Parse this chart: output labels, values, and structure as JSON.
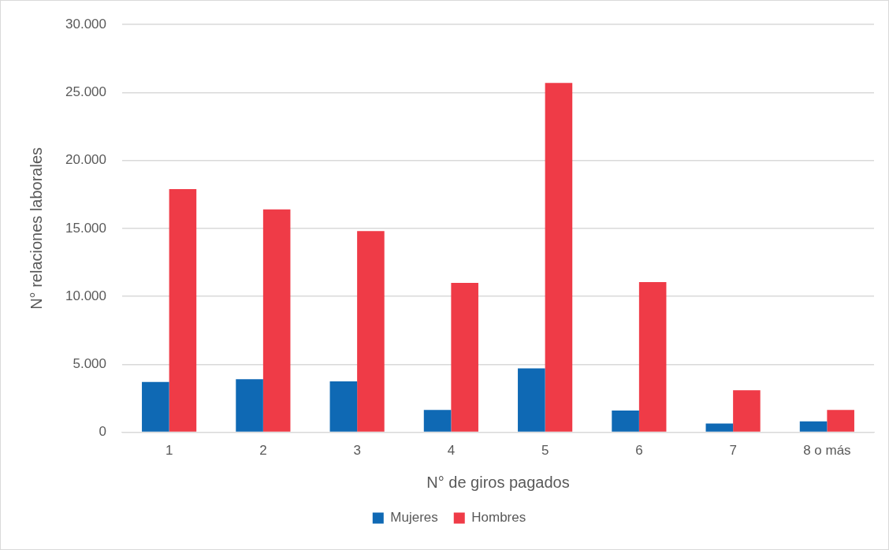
{
  "chart_data": {
    "type": "bar",
    "xlabel": "N° de giros pagados",
    "ylabel": "N° relaciones laborales",
    "categories": [
      "1",
      "2",
      "3",
      "4",
      "5",
      "6",
      "7",
      "8 o más"
    ],
    "series": [
      {
        "name": "Mujeres",
        "color": "#0f69b4",
        "values": [
          3700,
          3900,
          3750,
          1650,
          4700,
          1600,
          650,
          800
        ]
      },
      {
        "name": "Hombres",
        "color": "#ef3b47",
        "values": [
          17900,
          16400,
          14800,
          11000,
          25700,
          11050,
          3100,
          1650
        ]
      }
    ],
    "ylim": [
      0,
      30000
    ],
    "yticks": [
      {
        "value": 0,
        "label": "0"
      },
      {
        "value": 5000,
        "label": "5.000"
      },
      {
        "value": 10000,
        "label": "10.000"
      },
      {
        "value": 15000,
        "label": "15.000"
      },
      {
        "value": 20000,
        "label": "20.000"
      },
      {
        "value": 25000,
        "label": "25.000"
      },
      {
        "value": 30000,
        "label": "30.000"
      }
    ],
    "grid": "y",
    "legend": "bottom"
  }
}
